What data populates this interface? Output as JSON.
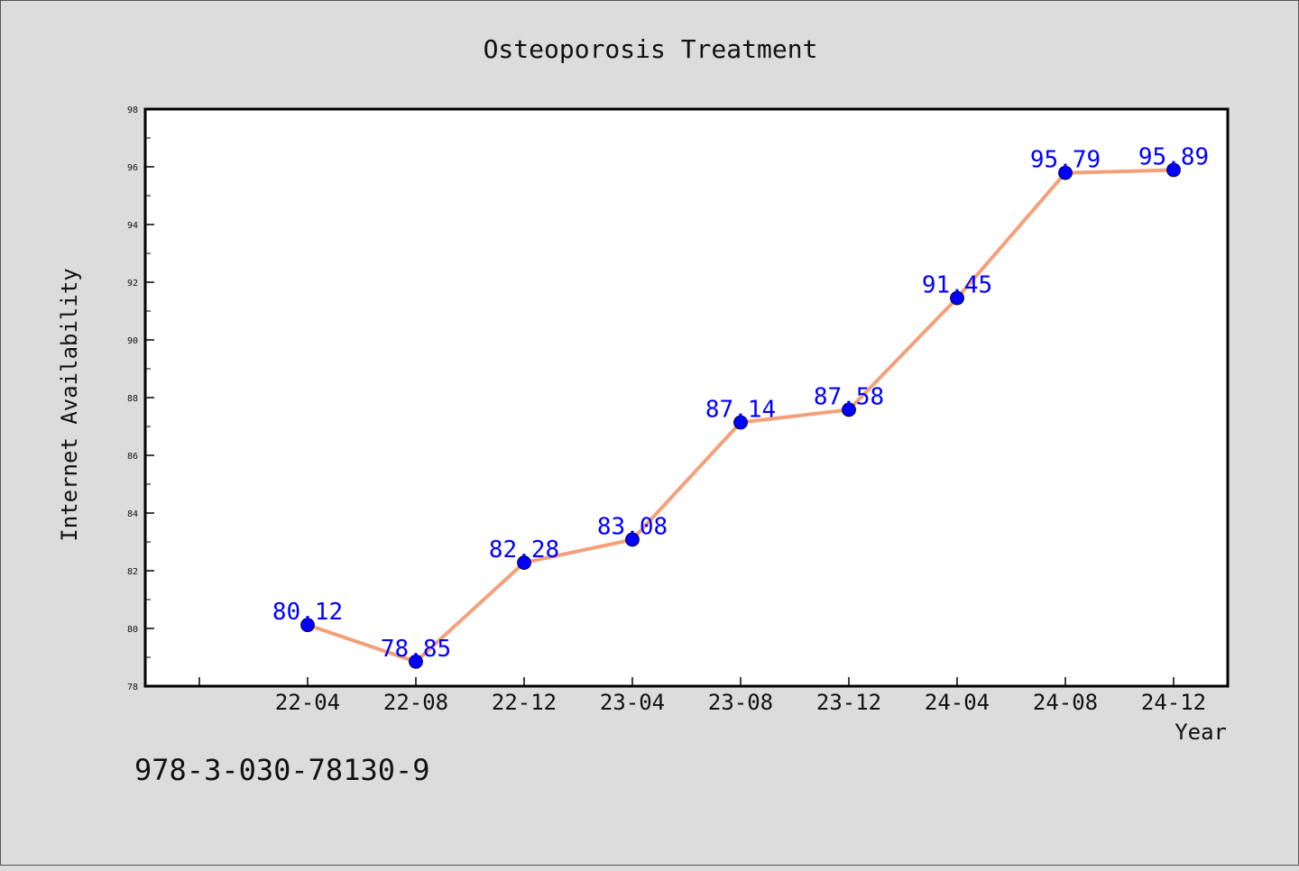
{
  "chart_data": {
    "type": "line",
    "title": "Osteoporosis Treatment",
    "xlabel": "Year",
    "ylabel": "Internet Availability",
    "categories": [
      "22-04",
      "22-08",
      "22-12",
      "23-04",
      "23-08",
      "23-12",
      "24-04",
      "24-08",
      "24-12"
    ],
    "values": [
      80.12,
      78.85,
      82.28,
      83.08,
      87.14,
      87.58,
      91.45,
      95.79,
      95.89
    ],
    "data_labels": [
      "80.12",
      "78.85",
      "82.28",
      "83.08",
      "87.14",
      "87.58",
      "91.45",
      "95.79",
      "95.89"
    ],
    "ylim": [
      78,
      98
    ],
    "y_ticks": [
      "78",
      "80",
      "82",
      "84",
      "86",
      "88",
      "90",
      "92",
      "94",
      "96",
      "98"
    ],
    "grid": false,
    "line_color": "#f4a07a",
    "marker_color": "#0000ff",
    "label_color": "#0000ff"
  },
  "annotation": "978-3-030-78130-9"
}
